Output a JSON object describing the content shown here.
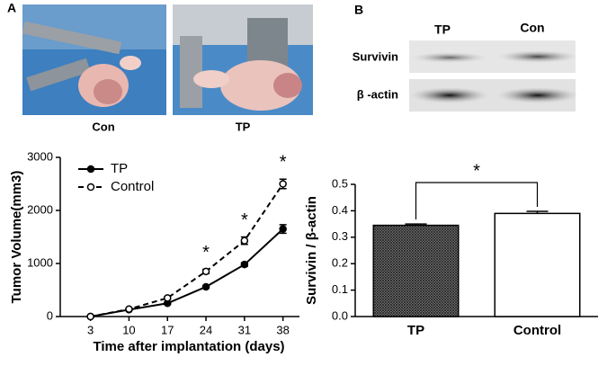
{
  "figure": {
    "panel_a": "A",
    "panel_b": "B",
    "photo_labels": [
      "Con",
      "TP"
    ],
    "blot_columns": [
      "TP",
      "Con"
    ],
    "blot_rows": [
      "Survivin",
      "β -actin"
    ]
  },
  "chart_data": [
    {
      "type": "line",
      "xlabel": "Time after implantation (days)",
      "ylabel": "Tumor Volume(mm3)",
      "x": [
        3,
        10,
        17,
        24,
        31,
        38
      ],
      "xlim": [
        -2.5,
        41
      ],
      "xticks": [
        3,
        10,
        17,
        24,
        31,
        38
      ],
      "ylim": [
        0,
        3000
      ],
      "yticks": [
        0,
        1000,
        2000,
        3000
      ],
      "legend": "upper left",
      "series": [
        {
          "name": "TP",
          "color": "#000000",
          "marker_fill": "#000000",
          "dashed": false,
          "values": [
            0,
            130,
            250,
            560,
            980,
            1650
          ],
          "errors": [
            10,
            15,
            20,
            25,
            35,
            80
          ]
        },
        {
          "name": "Control",
          "color": "#000000",
          "marker_fill": "#ffffff",
          "dashed": true,
          "values": [
            0,
            140,
            350,
            850,
            1430,
            2500
          ],
          "errors": [
            10,
            15,
            25,
            40,
            70,
            90
          ]
        }
      ],
      "annotations": [
        {
          "text": "*",
          "x": 24
        },
        {
          "text": "*",
          "x": 31
        },
        {
          "text": "*",
          "x": 38
        }
      ]
    },
    {
      "type": "bar",
      "ylabel": "Survivin / β-actin",
      "categories": [
        "TP",
        "Control"
      ],
      "values": [
        0.345,
        0.39
      ],
      "errors": [
        0.005,
        0.008
      ],
      "colors": [
        "#555555",
        "#ffffff"
      ],
      "hatch": [
        true,
        false
      ],
      "ylim": [
        0,
        0.5
      ],
      "yticks": [
        {
          "value": 0,
          "label": "0.0"
        },
        0.1,
        0.2,
        0.3,
        0.4,
        0.5
      ],
      "significance": "*"
    }
  ]
}
